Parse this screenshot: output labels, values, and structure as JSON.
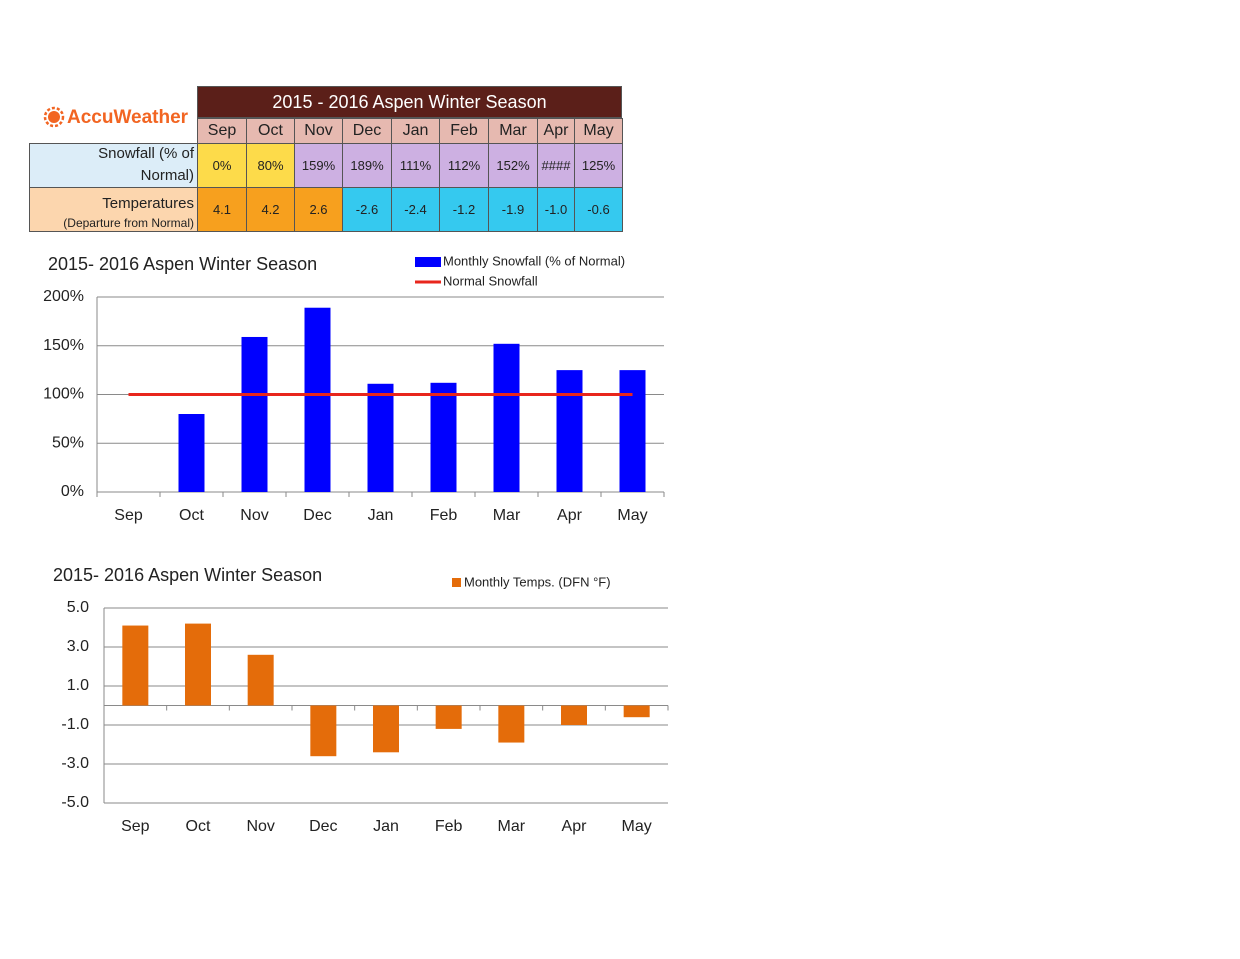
{
  "logo": "AccuWeather",
  "table": {
    "title": "2015 - 2016 Aspen Winter Season",
    "columns": [
      "Sep",
      "Oct",
      "Nov",
      "Dec",
      "Jan",
      "Feb",
      "Mar",
      "Apr",
      "May"
    ],
    "rows": [
      {
        "label": "Snowfall (% of Normal)",
        "cells": [
          "0%",
          "80%",
          "159%",
          "189%",
          "111%",
          "112%",
          "152%",
          "####",
          "125%"
        ]
      },
      {
        "label": "Temperatures",
        "note": "(Departure from Normal)",
        "cells": [
          "4.1",
          "4.2",
          "2.6",
          "-2.6",
          "-2.4",
          "-1.2",
          "-1.9",
          "-1.0",
          "-0.6"
        ]
      }
    ]
  },
  "chart_data": [
    {
      "type": "bar",
      "title": "2015- 2016 Aspen Winter Season",
      "categories": [
        "Sep",
        "Oct",
        "Nov",
        "Dec",
        "Jan",
        "Feb",
        "Mar",
        "Apr",
        "May"
      ],
      "series": [
        {
          "name": "Monthly Snowfall (% of Normal)",
          "color": "#0000ff",
          "type": "bar",
          "values": [
            0,
            80,
            159,
            189,
            111,
            112,
            152,
            125,
            125
          ]
        },
        {
          "name": "Normal Snowfall",
          "color": "#e8261c",
          "type": "line",
          "values": [
            100,
            100,
            100,
            100,
            100,
            100,
            100,
            100,
            100
          ]
        }
      ],
      "ylim": [
        0,
        200
      ],
      "yticks": [
        {
          "value": 0,
          "label": "0%"
        },
        {
          "value": 50,
          "label": "50%"
        },
        {
          "value": 100,
          "label": "100%"
        },
        {
          "value": 150,
          "label": "150%"
        },
        {
          "value": 200,
          "label": "200%"
        }
      ],
      "grid": true
    },
    {
      "type": "bar",
      "title": "2015- 2016 Aspen Winter Season",
      "categories": [
        "Sep",
        "Oct",
        "Nov",
        "Dec",
        "Jan",
        "Feb",
        "Mar",
        "Apr",
        "May"
      ],
      "series": [
        {
          "name": "Monthly Temps. (DFN °F)",
          "color": "#e46c0a",
          "type": "bar",
          "values": [
            4.1,
            4.2,
            2.6,
            -2.6,
            -2.4,
            -1.2,
            -1.9,
            -1.0,
            -0.6
          ]
        }
      ],
      "ylim": [
        -5,
        5
      ],
      "yticks": [
        {
          "value": -5,
          "label": "-5.0"
        },
        {
          "value": -3,
          "label": "-3.0"
        },
        {
          "value": -1,
          "label": "-1.0"
        },
        {
          "value": 1,
          "label": "1.0"
        },
        {
          "value": 3,
          "label": "3.0"
        },
        {
          "value": 5,
          "label": "5.0"
        }
      ],
      "grid": true
    }
  ]
}
